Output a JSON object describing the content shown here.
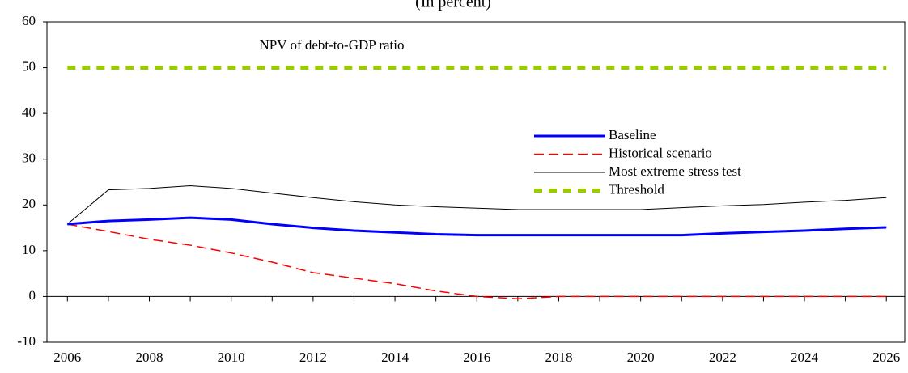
{
  "chart_data": {
    "type": "line",
    "subtitle": "(In percent)",
    "annotation": "NPV of debt-to-GDP ratio",
    "x": [
      2006,
      2007,
      2008,
      2009,
      2010,
      2011,
      2012,
      2013,
      2014,
      2015,
      2016,
      2017,
      2018,
      2019,
      2020,
      2021,
      2022,
      2023,
      2024,
      2025,
      2026
    ],
    "series": [
      {
        "name": "Baseline",
        "color": "#0000ff",
        "style": "solid",
        "width": 3,
        "values": [
          15.8,
          16.5,
          16.8,
          17.2,
          16.8,
          15.8,
          15.0,
          14.4,
          14.0,
          13.6,
          13.4,
          13.4,
          13.4,
          13.4,
          13.4,
          13.4,
          13.8,
          14.1,
          14.4,
          14.8,
          15.1
        ]
      },
      {
        "name": "Historical scenario",
        "color": "#ff0000",
        "style": "dashed",
        "width": 1.5,
        "values": [
          15.8,
          14.2,
          12.5,
          11.2,
          9.5,
          7.5,
          5.2,
          4.0,
          2.8,
          1.2,
          0,
          -0.5,
          0,
          0,
          0,
          0,
          0,
          0,
          0,
          0,
          0
        ]
      },
      {
        "name": "Most extreme stress test",
        "color": "#000000",
        "style": "solid",
        "width": 1,
        "values": [
          15.8,
          23.3,
          23.6,
          24.2,
          23.6,
          22.6,
          21.6,
          20.7,
          20.0,
          19.6,
          19.3,
          19.0,
          19.0,
          19.0,
          19.0,
          19.4,
          19.8,
          20.1,
          20.6,
          21.0,
          21.6
        ]
      },
      {
        "name": "Threshold",
        "color": "#99cc00",
        "style": "dotted",
        "width": 5,
        "values": [
          50,
          50,
          50,
          50,
          50,
          50,
          50,
          50,
          50,
          50,
          50,
          50,
          50,
          50,
          50,
          50,
          50,
          50,
          50,
          50,
          50
        ]
      }
    ],
    "xlim": [
      2005.5,
      2026.45
    ],
    "xticks": [
      2006,
      2008,
      2010,
      2012,
      2014,
      2016,
      2018,
      2020,
      2022,
      2024,
      2026
    ],
    "ylim": [
      -10,
      60
    ],
    "yticks": [
      -10,
      0,
      10,
      20,
      30,
      40,
      50,
      60
    ],
    "grid": false,
    "legend": "center-right"
  }
}
